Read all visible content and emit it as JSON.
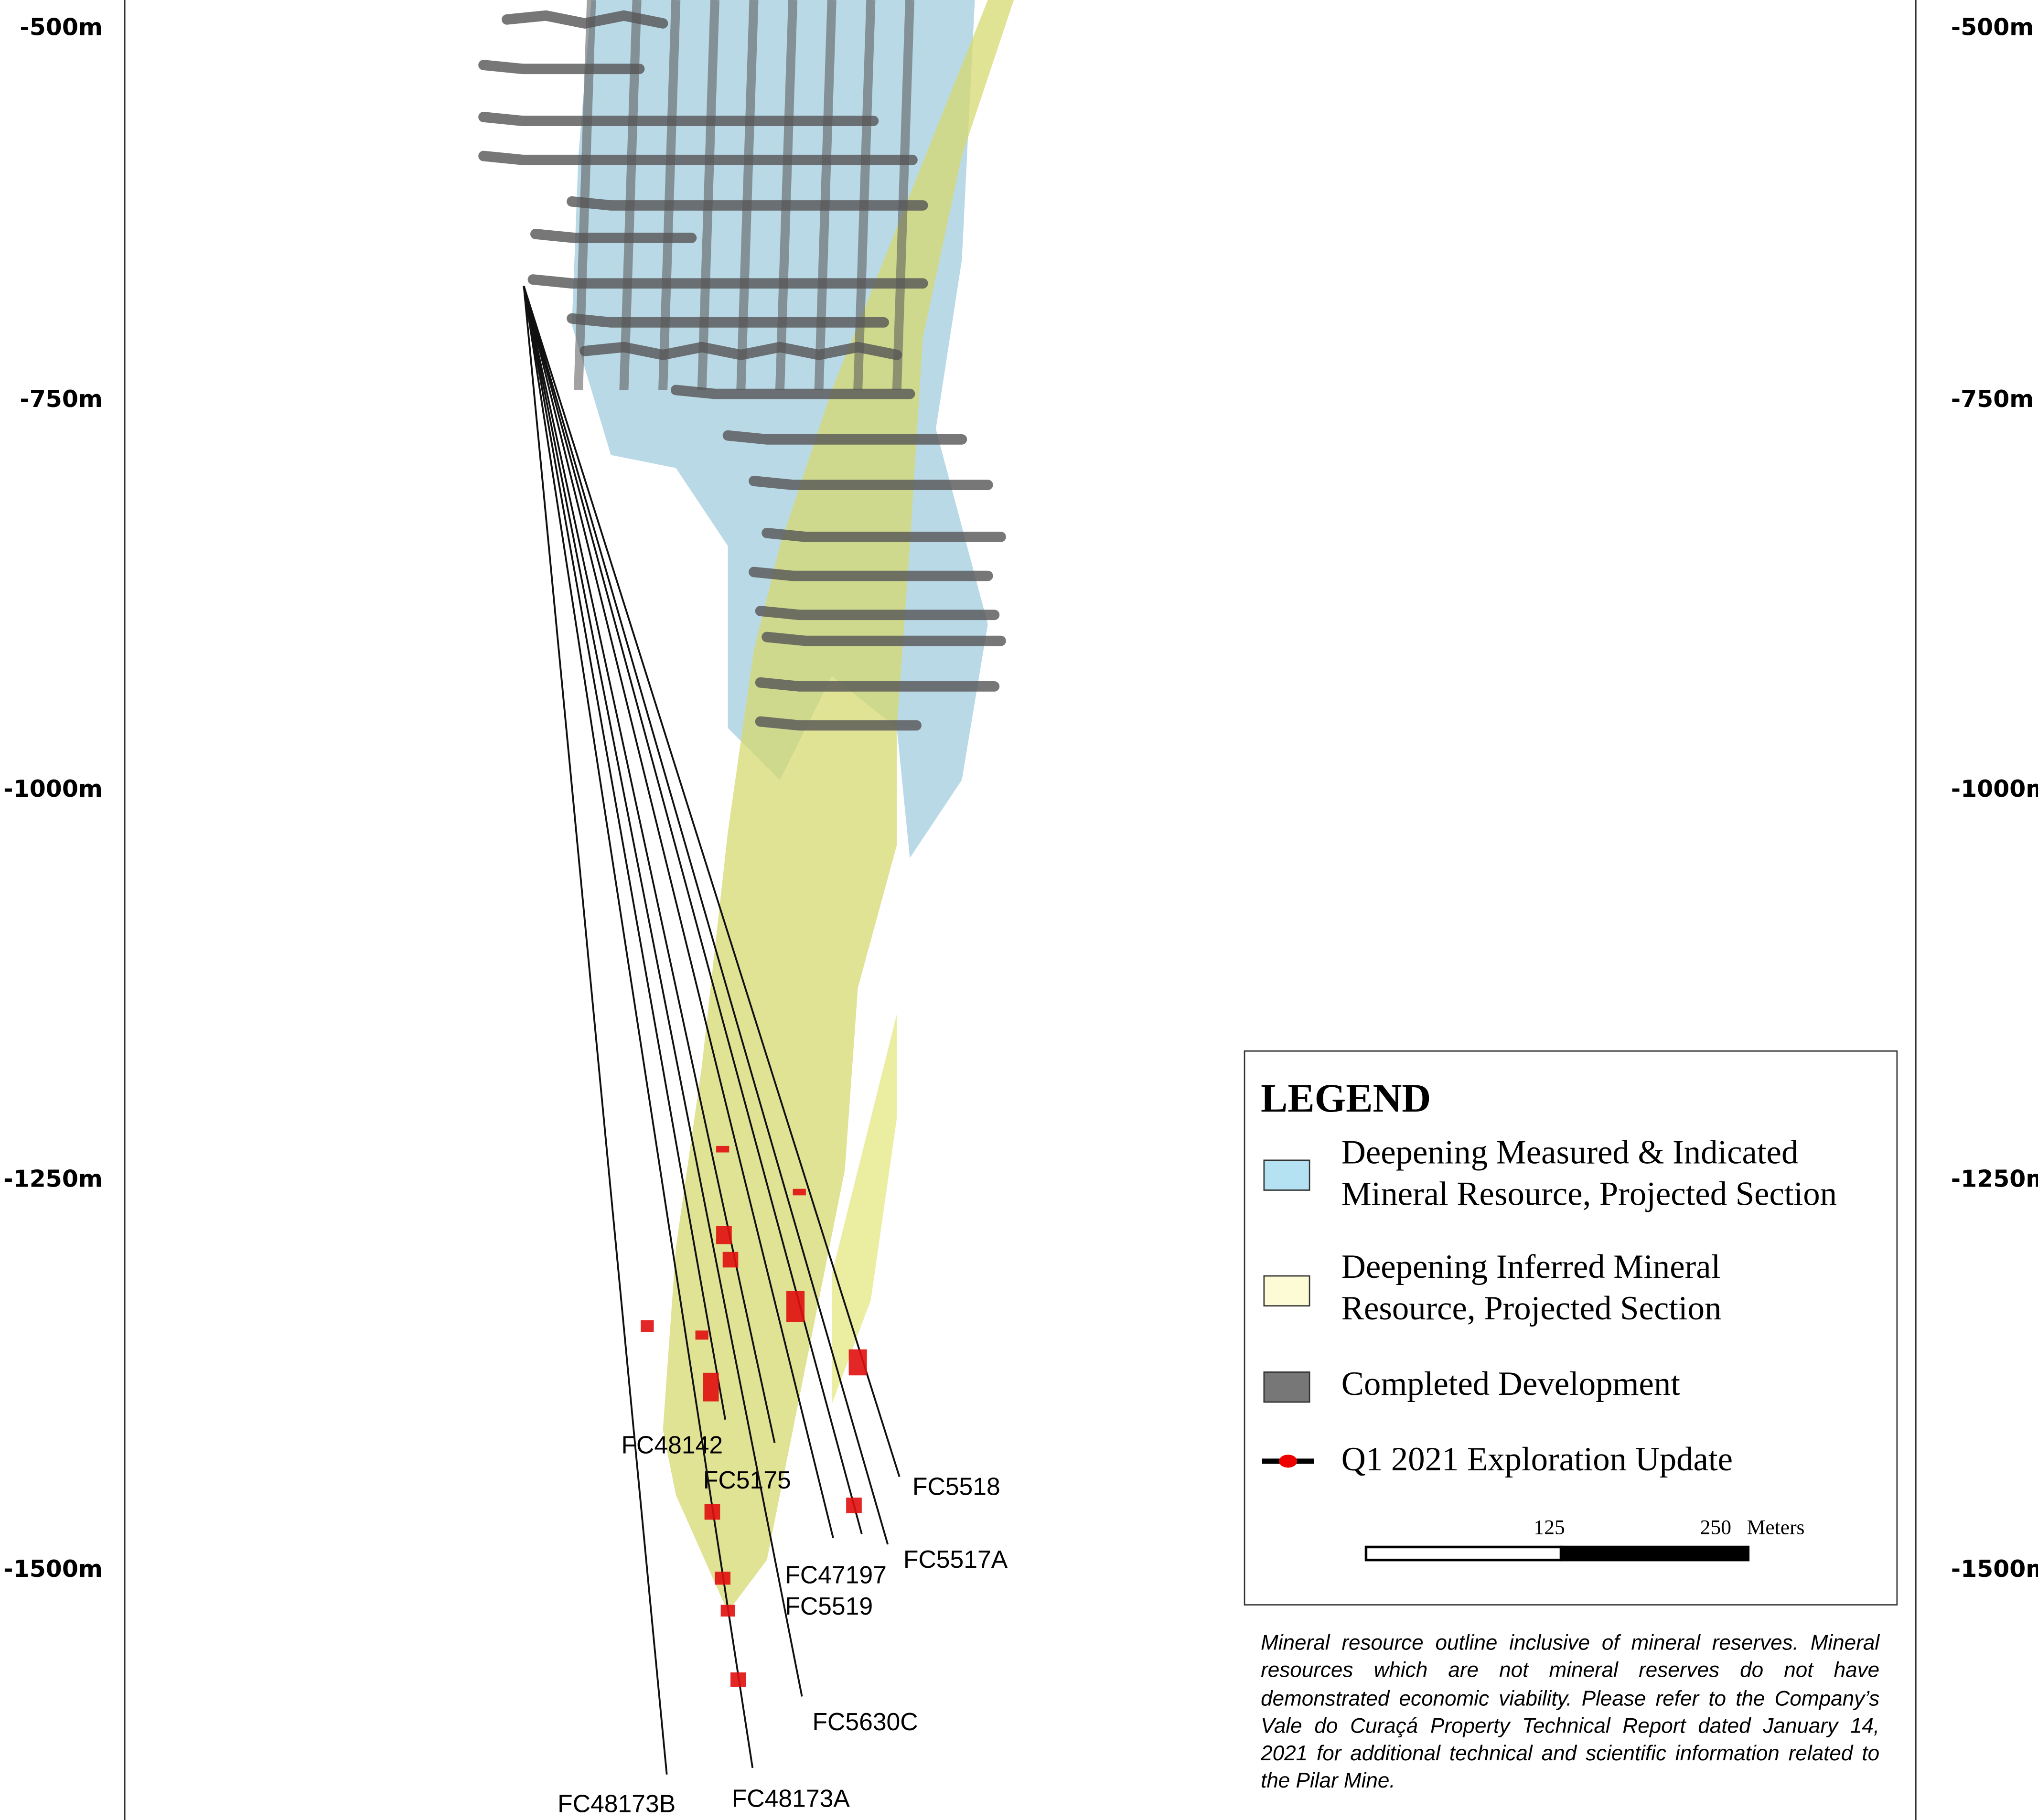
{
  "depth_labels": [
    "-500m",
    "-750m",
    "-1000m",
    "-1250m",
    "-1500m"
  ],
  "drill_holes": [
    "FC48142",
    "FC5175",
    "FC5518",
    "FC47197",
    "FC5519",
    "FC5517A",
    "FC5630C",
    "FC48173B",
    "FC48173A"
  ],
  "legend": {
    "title": "LEGEND",
    "items": [
      {
        "lines": [
          "Deepening Measured & Indicated",
          "Mineral Resource, Projected Section"
        ]
      },
      {
        "lines": [
          "Deepening Inferred Mineral",
          "Resource, Projected Section"
        ]
      },
      {
        "lines": [
          "Completed Development"
        ]
      },
      {
        "lines": [
          "Q1 2021 Exploration Update"
        ]
      }
    ],
    "scale_bar": {
      "labels": [
        "125",
        "250"
      ],
      "unit": "Meters"
    }
  },
  "note": "Mineral resource outline inclusive of mineral reserves. Mineral resources which are not mineral reserves do not have demonstrated economic viability. Please refer to the Company’s Vale do Curaçá Property Technical Report dated January 14, 2021 for additional technical and scientific information related to the Pilar Mine."
}
